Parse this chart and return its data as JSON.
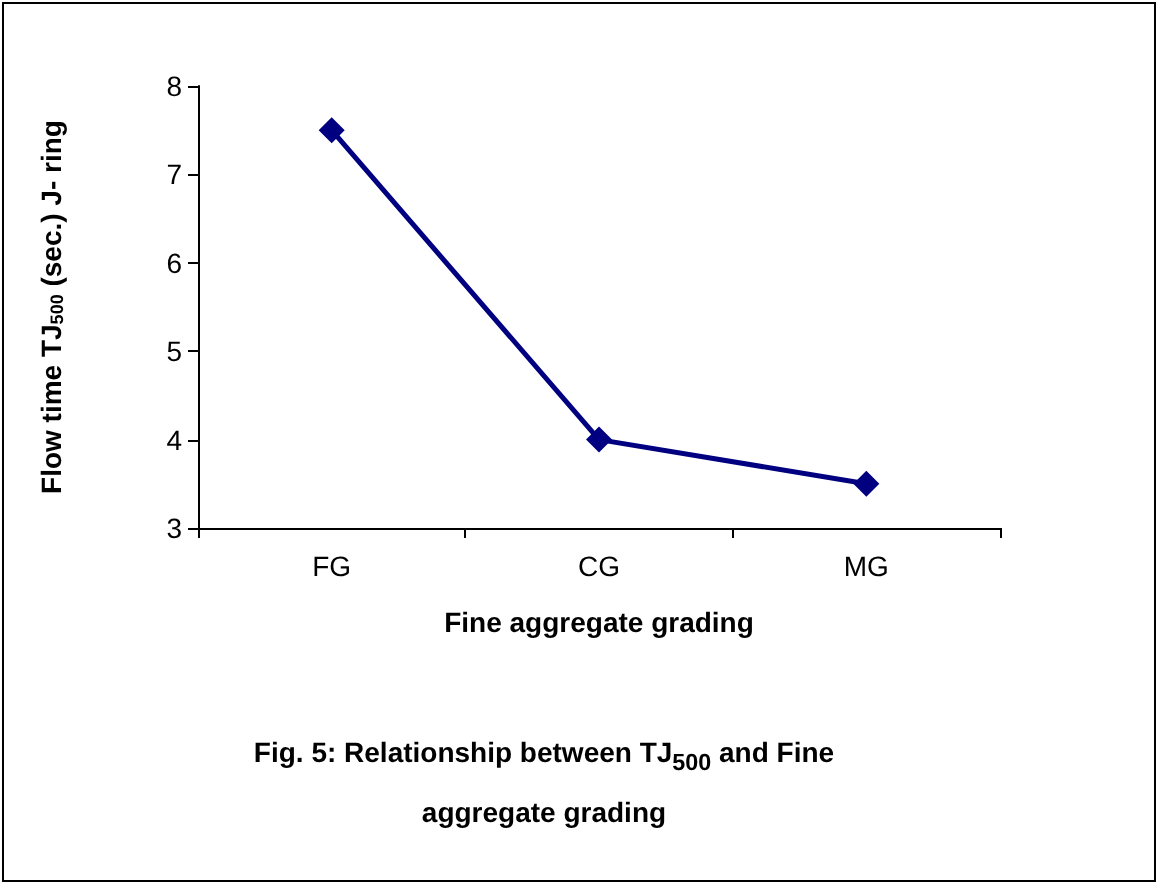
{
  "chart_data": {
    "type": "line",
    "xlabel": "Fine aggregate grading",
    "ylabel": "Flow time TJ$_{500}$ (sec.) J- ring",
    "categories": [
      "FG",
      "CG",
      "MG"
    ],
    "series": [
      {
        "color": "#000080",
        "values": [
          7.5,
          4.0,
          3.5
        ]
      }
    ],
    "ylim": [
      3,
      8
    ],
    "yticks": [
      3,
      4,
      5,
      6,
      7,
      8
    ],
    "grid": false,
    "marker": "diamond",
    "line_style": "solid",
    "annotations": [
      "Fig. 5: Relationship between TJ$_{500}$ and Fine aggregate grading"
    ]
  }
}
